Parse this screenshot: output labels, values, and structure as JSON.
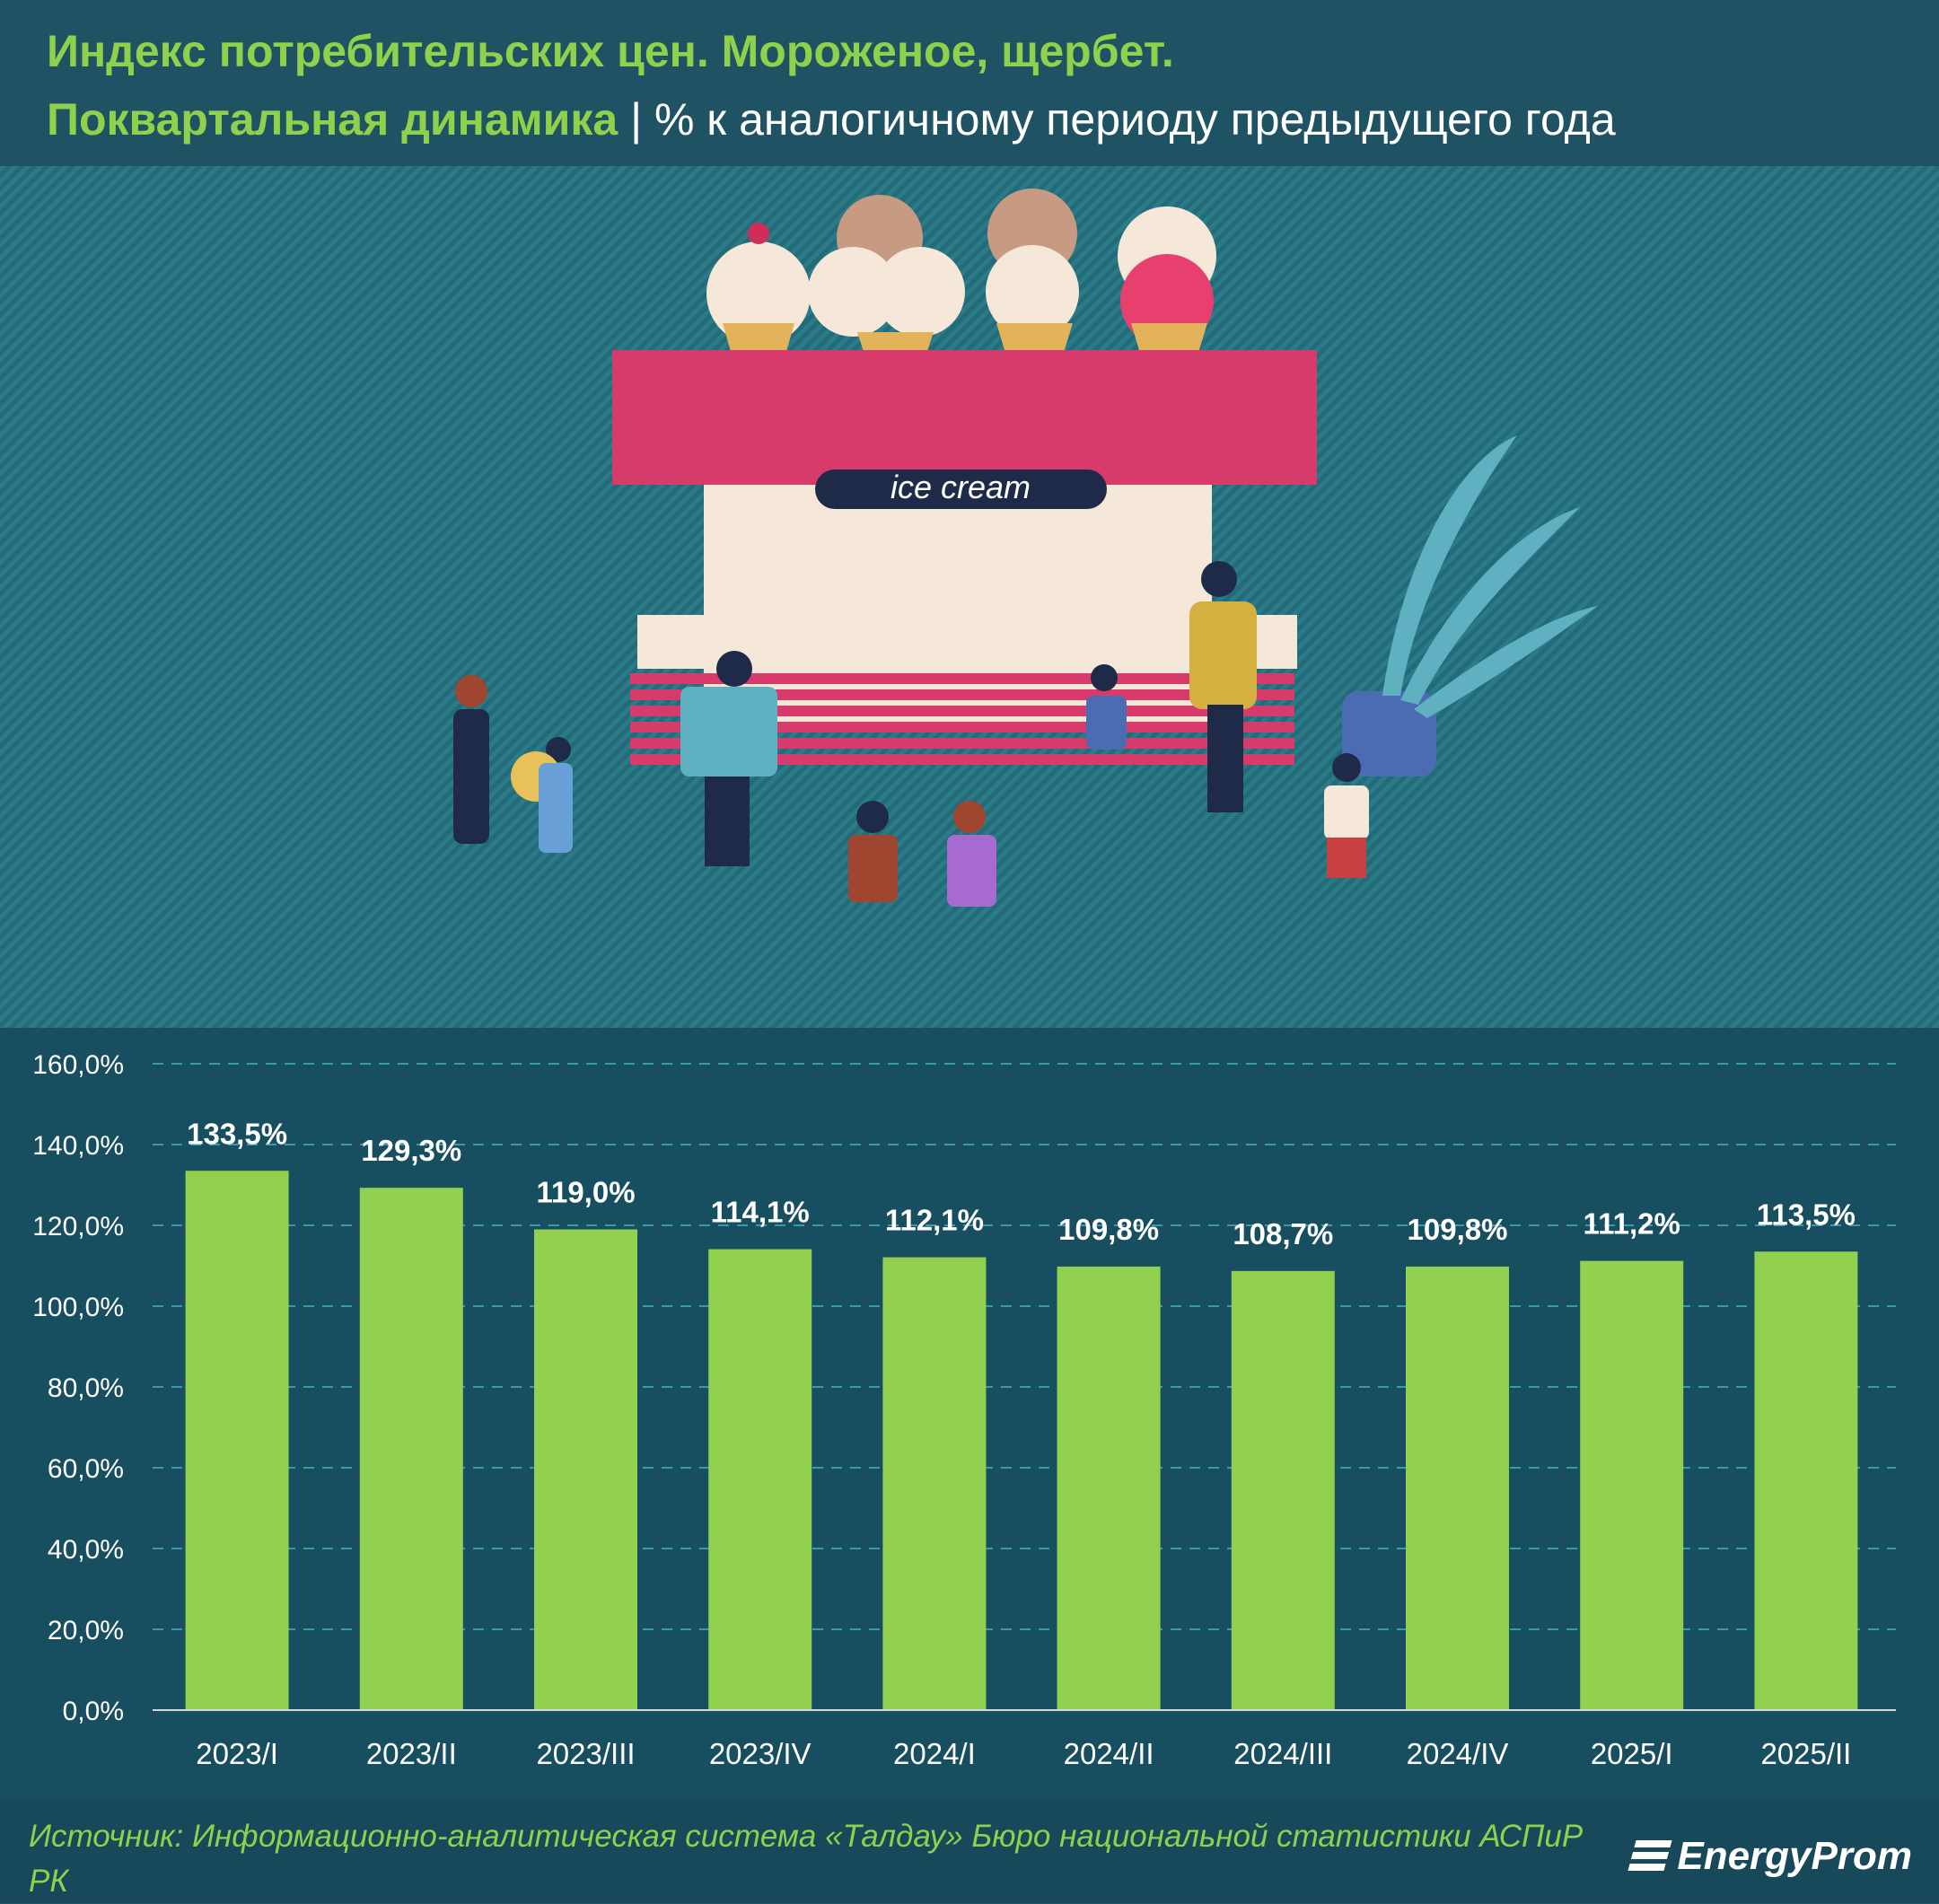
{
  "title": {
    "line1": "Индекс потребительских цен. Мороженое, щербет.",
    "line2_accent": "Поквартальная динамика",
    "line2_rest": " | % к аналогичному периоду предыдущего года"
  },
  "illustration": {
    "sign_text": "ice cream"
  },
  "chart_data": {
    "type": "bar",
    "categories": [
      "2023/I",
      "2023/II",
      "2023/III",
      "2023/IV",
      "2024/I",
      "2024/II",
      "2024/III",
      "2024/IV",
      "2025/I",
      "2025/II"
    ],
    "values": [
      133.5,
      129.3,
      119.0,
      114.1,
      112.1,
      109.8,
      108.7,
      109.8,
      111.2,
      113.5
    ],
    "value_labels": [
      "133,5%",
      "129,3%",
      "119,0%",
      "114,1%",
      "112,1%",
      "109,8%",
      "108,7%",
      "109,8%",
      "111,2%",
      "113,5%"
    ],
    "y_ticks": [
      0,
      20,
      40,
      60,
      80,
      100,
      120,
      140,
      160
    ],
    "y_tick_labels": [
      "0,0%",
      "20,0%",
      "40,0%",
      "60,0%",
      "80,0%",
      "100,0%",
      "120,0%",
      "140,0%",
      "160,0%"
    ],
    "ylim": [
      0,
      160
    ],
    "grid": true,
    "colors": {
      "bar": "#92d050",
      "grid": "#3a9aad",
      "text": "#ffffff"
    }
  },
  "footer": {
    "source": "Источник: Информационно-аналитическая система «Талдау» Бюро национальной статистики АСПиР РК",
    "logo": "EnergyProm"
  }
}
